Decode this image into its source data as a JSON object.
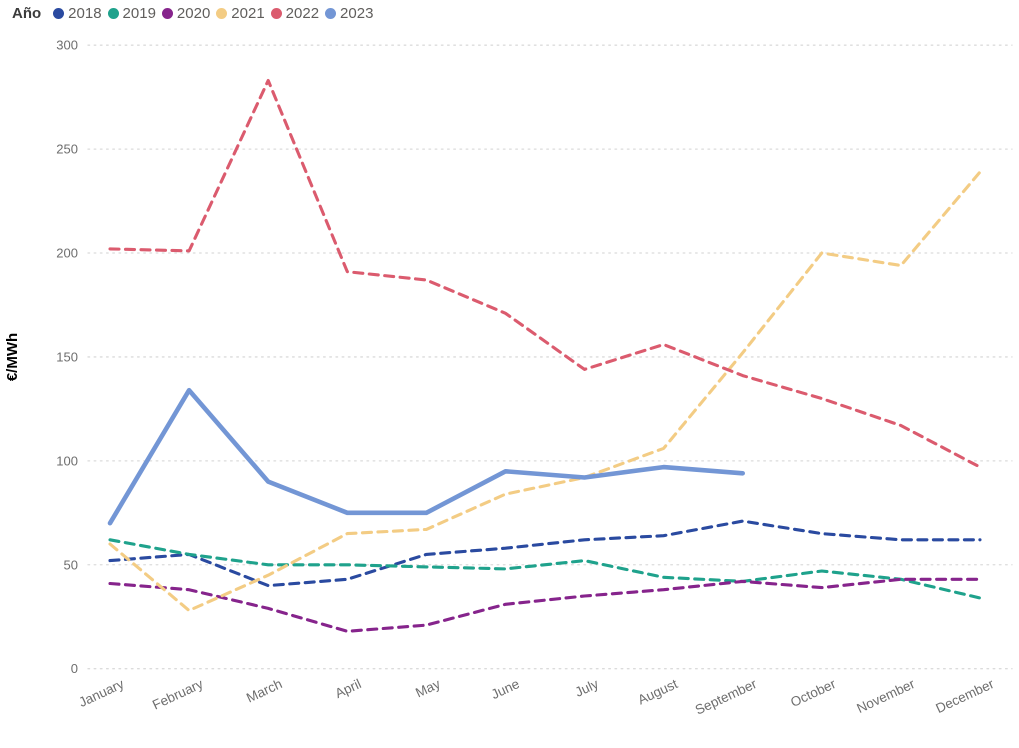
{
  "legend": {
    "title": "Año",
    "items": [
      {
        "label": "2018",
        "color": "#2a4aa0"
      },
      {
        "label": "2019",
        "color": "#1fa28c"
      },
      {
        "label": "2020",
        "color": "#86248c"
      },
      {
        "label": "2021",
        "color": "#f3cc84"
      },
      {
        "label": "2022",
        "color": "#db5b6e"
      },
      {
        "label": "2023",
        "color": "#7396d5"
      }
    ]
  },
  "chart_data": {
    "type": "line",
    "title": "",
    "xlabel": "",
    "ylabel": "€/MWh",
    "ylim": [
      0,
      300
    ],
    "yticks": [
      0,
      50,
      100,
      150,
      200,
      250,
      300
    ],
    "grid": "horizontal dotted",
    "legend_position": "top-left",
    "categories": [
      "January",
      "February",
      "March",
      "April",
      "May",
      "June",
      "July",
      "August",
      "September",
      "October",
      "November",
      "December"
    ],
    "series": [
      {
        "name": "2018",
        "color": "#2a4aa0",
        "style": "dashed",
        "values": [
          52,
          55,
          40,
          43,
          55,
          58,
          62,
          64,
          71,
          65,
          62,
          62
        ]
      },
      {
        "name": "2019",
        "color": "#1fa28c",
        "style": "dashed",
        "values": [
          62,
          55,
          50,
          50,
          49,
          48,
          52,
          44,
          42,
          47,
          43,
          34
        ]
      },
      {
        "name": "2020",
        "color": "#86248c",
        "style": "dashed",
        "values": [
          41,
          38,
          29,
          18,
          21,
          31,
          35,
          38,
          42,
          39,
          43,
          43
        ]
      },
      {
        "name": "2021",
        "color": "#f3cc84",
        "style": "dashed",
        "values": [
          60,
          28,
          45,
          65,
          67,
          84,
          92,
          106,
          152,
          200,
          194,
          239
        ]
      },
      {
        "name": "2022",
        "color": "#db5b6e",
        "style": "dashed",
        "values": [
          202,
          201,
          283,
          191,
          187,
          171,
          144,
          156,
          141,
          130,
          117,
          97
        ]
      },
      {
        "name": "2023",
        "color": "#7396d5",
        "style": "solid-thick",
        "values": [
          70,
          134,
          90,
          75,
          75,
          95,
          92,
          97,
          94,
          null,
          null,
          null
        ]
      }
    ]
  }
}
